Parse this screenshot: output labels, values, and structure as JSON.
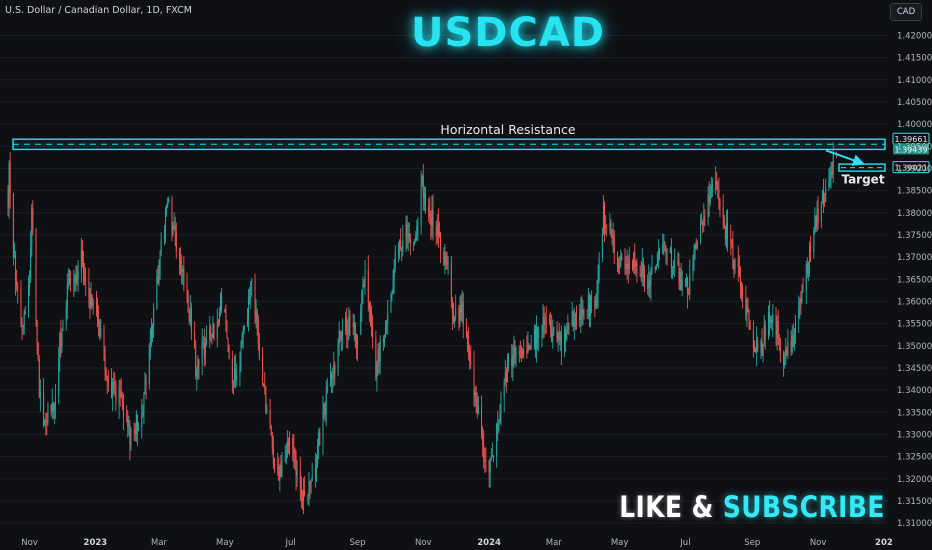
{
  "header": {
    "symbol_description": "U.S. Dollar / Canadian Dollar, 1D, FXCM",
    "title": "USDCAD",
    "currency_button": "CAD"
  },
  "footer": {
    "cta_like": "LIKE &",
    "cta_subscribe": "SUBSCRIBE"
  },
  "colors": {
    "background": "#0f1014",
    "up_candle": "#26a69a",
    "down_candle": "#ef5350",
    "accent": "#27e3f0",
    "axis_text": "#b2b5be"
  },
  "chart_data": {
    "type": "candlestick",
    "title": "USDCAD",
    "symbol": "U.S. Dollar / Canadian Dollar, 1D, FXCM",
    "ylim": [
      1.308,
      1.428
    ],
    "y_ticks": [
      "1.42000",
      "1.41500",
      "1.41000",
      "1.40500",
      "1.40000",
      "1.39500",
      "1.39000",
      "1.38500",
      "1.38000",
      "1.37500",
      "1.37000",
      "1.36500",
      "1.36000",
      "1.35500",
      "1.35000",
      "1.34500",
      "1.34000",
      "1.33500",
      "1.33000",
      "1.32500",
      "1.32000",
      "1.31500",
      "1.31000"
    ],
    "x_ticks": [
      "Nov",
      "2023",
      "Mar",
      "May",
      "Jul",
      "Sep",
      "Nov",
      "2024",
      "Mar",
      "May",
      "Jul",
      "Sep",
      "Nov",
      "202"
    ],
    "x_tick_dates": [
      "2022-11-01",
      "2023-01-01",
      "2023-03-01",
      "2023-05-01",
      "2023-07-01",
      "2023-09-01",
      "2023-11-01",
      "2024-01-01",
      "2024-03-01",
      "2024-05-01",
      "2024-07-01",
      "2024-09-01",
      "2024-11-01",
      "2025-01-01"
    ],
    "x_range": [
      "2022-10-12",
      "2025-01-02"
    ],
    "price_path": [
      [
        "2022-10-12",
        1.379
      ],
      [
        "2022-10-13",
        1.393
      ],
      [
        "2022-10-16",
        1.375
      ],
      [
        "2022-10-21",
        1.362
      ],
      [
        "2022-10-26",
        1.354
      ],
      [
        "2022-11-01",
        1.365
      ],
      [
        "2022-11-03",
        1.379
      ],
      [
        "2022-11-10",
        1.34
      ],
      [
        "2022-11-15",
        1.332
      ],
      [
        "2022-11-25",
        1.339
      ],
      [
        "2022-11-29",
        1.35
      ],
      [
        "2022-12-07",
        1.363
      ],
      [
        "2022-12-19",
        1.37
      ],
      [
        "2022-12-29",
        1.359
      ],
      [
        "2023-01-05",
        1.353
      ],
      [
        "2023-01-12",
        1.34
      ],
      [
        "2023-01-25",
        1.338
      ],
      [
        "2023-02-02",
        1.33
      ],
      [
        "2023-02-14",
        1.336
      ],
      [
        "2023-02-24",
        1.359
      ],
      [
        "2023-03-09",
        1.382
      ],
      [
        "2023-03-17",
        1.373
      ],
      [
        "2023-03-27",
        1.362
      ],
      [
        "2023-04-04",
        1.345
      ],
      [
        "2023-04-14",
        1.35
      ],
      [
        "2023-04-24",
        1.356
      ],
      [
        "2023-04-28",
        1.36
      ],
      [
        "2023-05-09",
        1.342
      ],
      [
        "2023-05-19",
        1.352
      ],
      [
        "2023-05-26",
        1.364
      ],
      [
        "2023-06-05",
        1.343
      ],
      [
        "2023-06-18",
        1.32
      ],
      [
        "2023-06-30",
        1.328
      ],
      [
        "2023-07-13",
        1.316
      ],
      [
        "2023-07-23",
        1.323
      ],
      [
        "2023-08-05",
        1.34
      ],
      [
        "2023-08-20",
        1.356
      ],
      [
        "2023-08-31",
        1.352
      ],
      [
        "2023-09-08",
        1.365
      ],
      [
        "2023-09-18",
        1.345
      ],
      [
        "2023-09-29",
        1.356
      ],
      [
        "2023-10-06",
        1.37
      ],
      [
        "2023-10-17",
        1.376
      ],
      [
        "2023-10-22",
        1.372
      ],
      [
        "2023-10-31",
        1.386
      ],
      [
        "2023-11-10",
        1.378
      ],
      [
        "2023-11-24",
        1.367
      ],
      [
        "2023-11-30",
        1.356
      ],
      [
        "2023-12-07",
        1.358
      ],
      [
        "2023-12-18",
        1.34
      ],
      [
        "2023-12-31",
        1.32
      ],
      [
        "2024-01-04",
        1.325
      ],
      [
        "2024-01-14",
        1.342
      ],
      [
        "2024-01-24",
        1.348
      ],
      [
        "2024-02-07",
        1.35
      ],
      [
        "2024-02-23",
        1.355
      ],
      [
        "2024-03-07",
        1.35
      ],
      [
        "2024-03-24",
        1.358
      ],
      [
        "2024-04-09",
        1.36
      ],
      [
        "2024-04-16",
        1.38
      ],
      [
        "2024-04-26",
        1.372
      ],
      [
        "2024-05-07",
        1.365
      ],
      [
        "2024-05-14",
        1.37
      ],
      [
        "2024-05-28",
        1.363
      ],
      [
        "2024-06-11",
        1.373
      ],
      [
        "2024-06-21",
        1.368
      ],
      [
        "2024-07-04",
        1.362
      ],
      [
        "2024-07-15",
        1.378
      ],
      [
        "2024-07-29",
        1.386
      ],
      [
        "2024-08-05",
        1.378
      ],
      [
        "2024-08-19",
        1.365
      ],
      [
        "2024-09-02",
        1.352
      ],
      [
        "2024-09-07",
        1.347
      ],
      [
        "2024-09-15",
        1.356
      ],
      [
        "2024-09-24",
        1.354
      ],
      [
        "2024-09-29",
        1.348
      ],
      [
        "2024-10-09",
        1.352
      ],
      [
        "2024-10-18",
        1.362
      ],
      [
        "2024-10-26",
        1.374
      ],
      [
        "2024-11-08",
        1.386
      ],
      [
        "2024-11-18",
        1.3943
      ]
    ],
    "annotations": {
      "resistance": {
        "label": "Horizontal Resistance",
        "y_top": 1.3966,
        "y_bottom": 1.3943,
        "price_label": "1.39661"
      },
      "current_price": {
        "value": 1.3943,
        "label": "1.39439"
      },
      "target": {
        "label": "Target",
        "value": 1.3902,
        "price_label": "1.39021"
      }
    }
  }
}
